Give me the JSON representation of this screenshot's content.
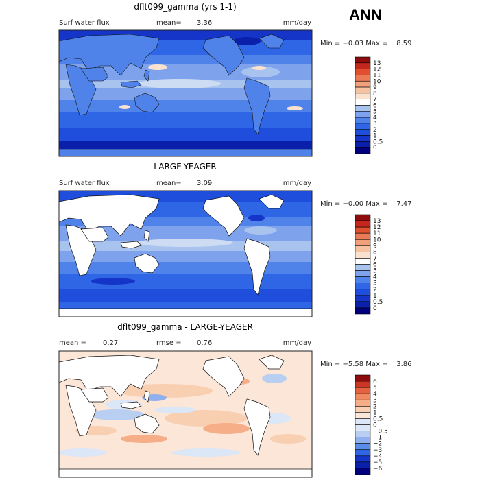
{
  "season_label": "ANN",
  "colors": {
    "flux_scale": [
      "#00007f",
      "#0a1faa",
      "#1535c8",
      "#1f4edd",
      "#2e66e6",
      "#4f83ea",
      "#7ea3ec",
      "#a9c3ef",
      "#cddcf3",
      "#ffffff",
      "#fbe2cf",
      "#f7c2a2",
      "#f2a07c",
      "#eb7b57",
      "#e0502f",
      "#c4271b",
      "#8f0c0c"
    ],
    "diff_scale": [
      "#00007f",
      "#0a1faa",
      "#1535c8",
      "#2e66e6",
      "#5a8cea",
      "#8fb0ed",
      "#b8cff1",
      "#dbe6f6",
      "#fbe6d8",
      "#f9cfb2",
      "#f5ae88",
      "#ef8a63",
      "#e4623f",
      "#cc3523",
      "#8f0c0c"
    ],
    "land_fill": "#ffffff",
    "coast": "#111111"
  },
  "chart_data": [
    {
      "type": "heatmap",
      "title": "dflt099_gamma (yrs 1-1)",
      "left_label": "Surf water flux",
      "mean_label": "mean=",
      "mean_value": "3.36",
      "units": "mm/day",
      "min_max": "Min = −0.03 Max =    8.59",
      "colorbar_levels": [
        "0",
        "0.5",
        "1",
        "2",
        "3",
        "4",
        "5",
        "6",
        "7",
        "8",
        "9",
        "10",
        "11",
        "12",
        "13"
      ],
      "land_masked": false
    },
    {
      "type": "heatmap",
      "title": "LARGE-YEAGER",
      "left_label": "Surf water flux",
      "mean_label": "mean=",
      "mean_value": "3.09",
      "units": "mm/day",
      "min_max": "Min = −0.00 Max =    7.47",
      "colorbar_levels": [
        "0",
        "0.5",
        "1",
        "2",
        "3",
        "4",
        "5",
        "6",
        "7",
        "8",
        "9",
        "10",
        "11",
        "12",
        "13"
      ],
      "land_masked": true
    },
    {
      "type": "heatmap",
      "title": "dflt099_gamma - LARGE-YEAGER",
      "mean_label": "mean =",
      "mean_value": "0.27",
      "rmse_label": "rmse =",
      "rmse_value": "0.76",
      "units": "mm/day",
      "min_max": "Min = −5.58 Max =    3.86",
      "colorbar_levels": [
        "−6",
        "−5",
        "−4",
        "−3",
        "−2",
        "−1",
        "−0.5",
        "0",
        "0.5",
        "1",
        "2",
        "3",
        "4",
        "5",
        "6"
      ],
      "land_masked": true
    }
  ]
}
